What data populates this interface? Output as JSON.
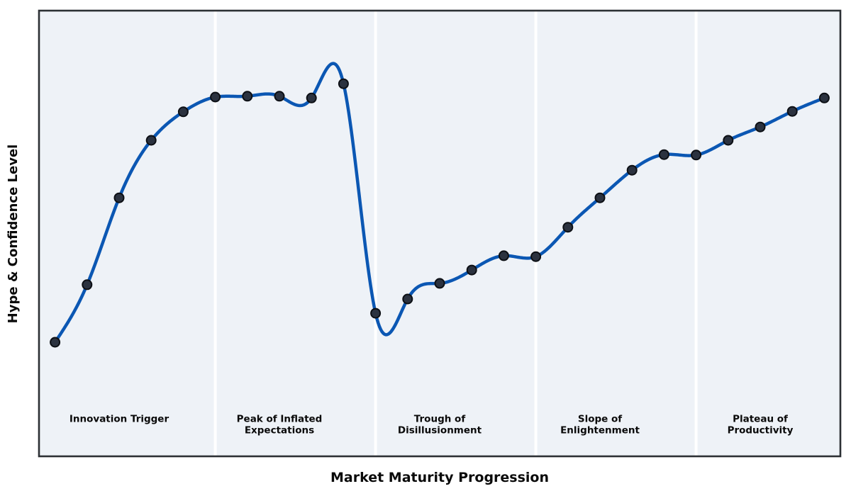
{
  "chart_data": {
    "type": "line",
    "title": "",
    "xlabel": "Market Maturity Progression",
    "ylabel": "Hype & Confidence Level",
    "xlim": [
      -0.5,
      24.5
    ],
    "ylim": [
      0,
      100
    ],
    "grid": false,
    "smoothing": "cubic-spline",
    "legend": "none",
    "x": [
      0,
      1,
      2,
      3,
      4,
      5,
      6,
      7,
      8,
      9,
      10,
      11,
      12,
      13,
      14,
      15,
      16,
      17,
      18,
      19,
      20,
      21,
      22,
      23,
      24
    ],
    "series": [
      {
        "name": "Hype & Confidence",
        "values": [
          25.6,
          38.5,
          58.0,
          70.9,
          77.3,
          80.6,
          80.8,
          80.8,
          80.4,
          83.6,
          32.1,
          35.3,
          38.8,
          41.8,
          45.0,
          44.8,
          51.4,
          58.0,
          64.2,
          67.7,
          67.6,
          70.9,
          73.9,
          77.4,
          80.4
        ]
      }
    ],
    "phases": [
      {
        "name": "Innovation Trigger",
        "lines": [
          "Innovation Trigger"
        ],
        "x_start": -0.5,
        "x_end": 5,
        "label_x": 2
      },
      {
        "name": "Peak of Inflated Expectations",
        "lines": [
          "Peak of Inflated",
          "Expectations"
        ],
        "x_start": 5,
        "x_end": 10,
        "label_x": 7
      },
      {
        "name": "Trough of Disillusionment",
        "lines": [
          "Trough of",
          "Disillusionment"
        ],
        "x_start": 10,
        "x_end": 15,
        "label_x": 12
      },
      {
        "name": "Slope of Enlightenment",
        "lines": [
          "Slope of",
          "Enlightenment"
        ],
        "x_start": 15,
        "x_end": 20,
        "label_x": 17
      },
      {
        "name": "Plateau of Productivity",
        "lines": [
          "Plateau of",
          "Productivity"
        ],
        "x_start": 20,
        "x_end": 24.5,
        "label_x": 22
      }
    ],
    "colors": {
      "line": "#0b57b3",
      "marker_fill": "#2b323f",
      "marker_edge": "#0c0f14",
      "band_background": "#eef2f7",
      "phase_divider": "#ffffff",
      "spine": "#2c3034",
      "label_text": "#0a0a0a"
    }
  }
}
